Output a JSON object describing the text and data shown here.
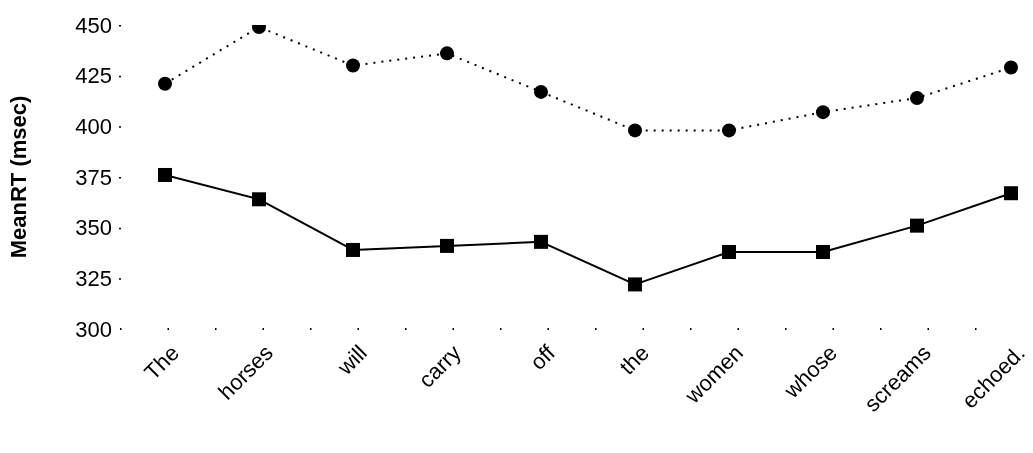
{
  "chart_data": {
    "type": "line",
    "ylabel": "MeanRT (msec)",
    "categories": [
      "The",
      "horses",
      "will",
      "carry",
      "off",
      "the",
      "women",
      "whose",
      "screams",
      "echoed."
    ],
    "series": [
      {
        "color": "#000000",
        "marker": "circle",
        "line_style": "dotted",
        "values": [
          421,
          449,
          430,
          436,
          417,
          398,
          398,
          407,
          414,
          429
        ]
      },
      {
        "color": "#000000",
        "marker": "square",
        "line_style": "solid",
        "values": [
          376,
          364,
          339,
          341,
          343,
          322,
          338,
          338,
          351,
          367
        ]
      }
    ],
    "ylim": [
      300,
      450
    ],
    "yticks": [
      300,
      325,
      350,
      375,
      400,
      425,
      450
    ],
    "grid": false
  }
}
